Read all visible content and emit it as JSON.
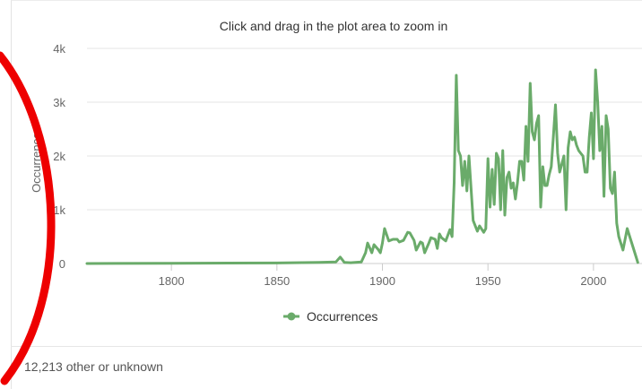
{
  "chart_data": {
    "type": "line",
    "title": "",
    "subtitle": "Click and drag in the plot area to zoom in",
    "xlabel": "",
    "ylabel": "Occurrences",
    "xlim": [
      1760,
      2023
    ],
    "ylim": [
      0,
      4000
    ],
    "x_ticks": [
      1800,
      1850,
      1900,
      1950,
      2000
    ],
    "y_ticks": [
      {
        "value": 0,
        "label": "0"
      },
      {
        "value": 1000,
        "label": "1k"
      },
      {
        "value": 2000,
        "label": "2k"
      },
      {
        "value": 3000,
        "label": "3k"
      },
      {
        "value": 4000,
        "label": "4k"
      }
    ],
    "grid": true,
    "legend": "bottom-center",
    "series": [
      {
        "name": "Occurrences",
        "color": "#6aab6a",
        "x": [
          1760,
          1800,
          1850,
          1870,
          1878,
          1880,
          1882,
          1885,
          1890,
          1892,
          1893,
          1895,
          1896,
          1898,
          1899,
          1900,
          1901,
          1903,
          1905,
          1907,
          1908,
          1910,
          1912,
          1913,
          1915,
          1916,
          1918,
          1919,
          1920,
          1922,
          1923,
          1925,
          1926,
          1927,
          1928,
          1930,
          1932,
          1933,
          1934,
          1935,
          1936,
          1937,
          1938,
          1939,
          1940,
          1941,
          1943,
          1945,
          1946,
          1948,
          1949,
          1950,
          1951,
          1952,
          1953,
          1954,
          1955,
          1956,
          1957,
          1958,
          1959,
          1960,
          1961,
          1962,
          1963,
          1964,
          1965,
          1966,
          1967,
          1968,
          1969,
          1970,
          1971,
          1972,
          1973,
          1974,
          1975,
          1976,
          1977,
          1978,
          1979,
          1980,
          1981,
          1982,
          1983,
          1984,
          1985,
          1986,
          1987,
          1988,
          1989,
          1990,
          1991,
          1992,
          1993,
          1994,
          1995,
          1996,
          1997,
          1998,
          1999,
          2000,
          2001,
          2002,
          2003,
          2004,
          2005,
          2006,
          2007,
          2008,
          2009,
          2010,
          2011,
          2012,
          2014,
          2016,
          2018,
          2020,
          2021
        ],
        "y": [
          0,
          5,
          10,
          20,
          30,
          120,
          20,
          15,
          30,
          200,
          380,
          200,
          350,
          260,
          200,
          380,
          650,
          420,
          450,
          450,
          400,
          430,
          580,
          570,
          430,
          250,
          400,
          380,
          200,
          380,
          480,
          450,
          280,
          550,
          480,
          420,
          630,
          500,
          1500,
          3500,
          2100,
          2000,
          1450,
          1900,
          1350,
          2000,
          800,
          600,
          700,
          580,
          650,
          1950,
          1050,
          1750,
          1100,
          2050,
          1950,
          1000,
          2100,
          900,
          1600,
          1700,
          1400,
          1500,
          1200,
          1500,
          1900,
          1900,
          1550,
          2550,
          1900,
          3350,
          2450,
          2300,
          2600,
          2750,
          1050,
          1800,
          1450,
          1450,
          1650,
          1800,
          2350,
          2950,
          2050,
          1700,
          1850,
          2000,
          1000,
          2150,
          2450,
          2300,
          2350,
          2200,
          2100,
          2050,
          2000,
          1700,
          1700,
          2350,
          2800,
          1950,
          3600,
          3000,
          2100,
          2550,
          1250,
          2750,
          2500,
          1400,
          1300,
          1700,
          750,
          500,
          250,
          650,
          400,
          150,
          20
        ]
      }
    ]
  },
  "footer": {
    "note": "12,213 other or unknown"
  }
}
